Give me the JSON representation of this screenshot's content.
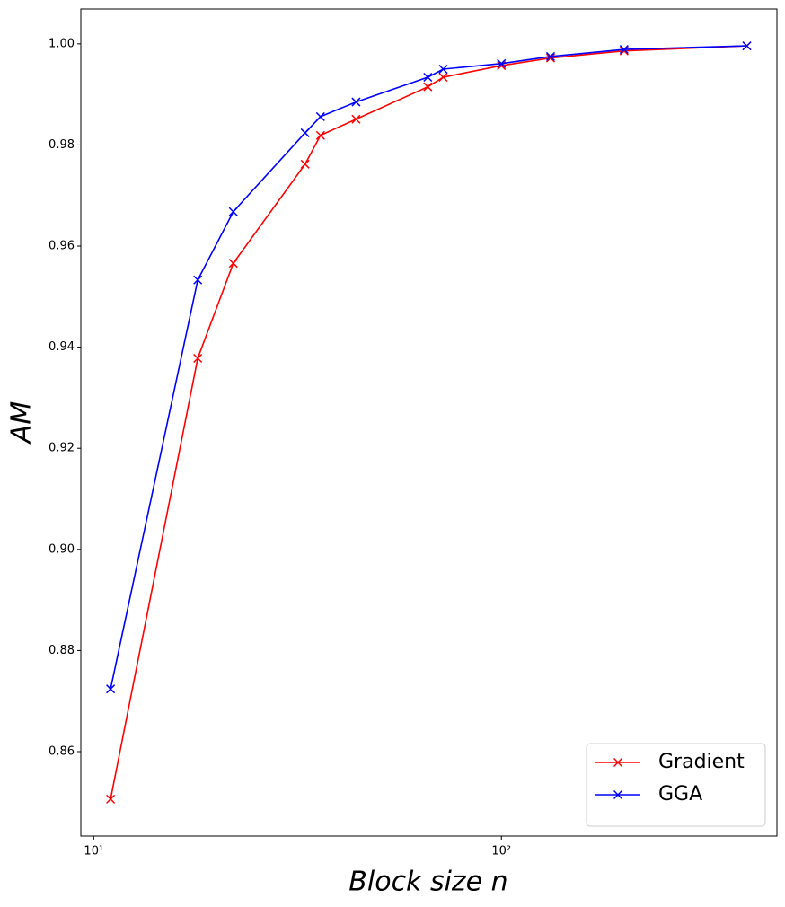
{
  "chart_data": {
    "type": "line",
    "xlabel": "Block size n",
    "ylabel": "AM",
    "xscale": "log",
    "x": [
      11,
      18,
      22,
      33,
      36,
      44,
      66,
      72,
      100,
      132,
      200,
      400
    ],
    "series": [
      {
        "name": "Gradient",
        "color": "#ff0000",
        "marker": "x",
        "values": [
          0.8506,
          0.9378,
          0.9566,
          0.9762,
          0.9819,
          0.9851,
          0.9915,
          0.9934,
          0.9957,
          0.9972,
          0.9986,
          0.9996
        ]
      },
      {
        "name": "GGA",
        "color": "#0000ff",
        "marker": "x",
        "values": [
          0.8724,
          0.9533,
          0.9668,
          0.9824,
          0.9856,
          0.9885,
          0.9934,
          0.995,
          0.9961,
          0.9975,
          0.9989,
          0.9996
        ]
      }
    ],
    "xlim": [
      9.3,
      474
    ],
    "ylim": [
      0.8433,
      1.0069
    ],
    "xticks": [
      {
        "value": 10,
        "label": "10¹"
      },
      {
        "value": 100,
        "label": "10²"
      }
    ],
    "yticks": [
      0.86,
      0.88,
      {
        "value": 0.9,
        "label": "0.90"
      },
      0.92,
      0.94,
      0.96,
      0.98,
      {
        "value": 1,
        "label": "1.00"
      }
    ],
    "legend": "lower right",
    "grid": false
  }
}
